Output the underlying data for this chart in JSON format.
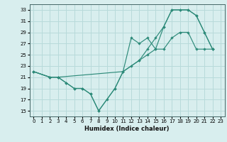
{
  "xlabel": "Humidex (Indice chaleur)",
  "line_color": "#2e8b7a",
  "bg_color": "#d8eeee",
  "grid_color": "#b8dada",
  "xlim": [
    -0.5,
    23.5
  ],
  "ylim": [
    14,
    34
  ],
  "xticks": [
    0,
    1,
    2,
    3,
    4,
    5,
    6,
    7,
    8,
    9,
    10,
    11,
    12,
    13,
    14,
    15,
    16,
    17,
    18,
    19,
    20,
    21,
    22,
    23
  ],
  "yticks": [
    15,
    17,
    19,
    21,
    23,
    25,
    27,
    29,
    31,
    33
  ],
  "line1_x": [
    0,
    2,
    3,
    11,
    12,
    13,
    14,
    15,
    16,
    17,
    18,
    19,
    20,
    21,
    22
  ],
  "line1_y": [
    22,
    21,
    21,
    22,
    28,
    27,
    28,
    26,
    30,
    33,
    33,
    33,
    32,
    29,
    26
  ],
  "line2_x": [
    0,
    2,
    3,
    4,
    5,
    6,
    7,
    8,
    9,
    10,
    11,
    13,
    14,
    15,
    16,
    17,
    18,
    19,
    20,
    21,
    22
  ],
  "line2_y": [
    22,
    21,
    21,
    20,
    19,
    19,
    18,
    15,
    17,
    19,
    22,
    24,
    26,
    28,
    30,
    33,
    33,
    33,
    32,
    29,
    26
  ],
  "line3_x": [
    0,
    2,
    3,
    4,
    5,
    6,
    7,
    8,
    10,
    11,
    12,
    13,
    14,
    15,
    16,
    17,
    18,
    19,
    20,
    21,
    22
  ],
  "line3_y": [
    22,
    21,
    21,
    20,
    19,
    19,
    18,
    15,
    19,
    22,
    23,
    24,
    25,
    26,
    26,
    28,
    29,
    29,
    26,
    26,
    26
  ]
}
